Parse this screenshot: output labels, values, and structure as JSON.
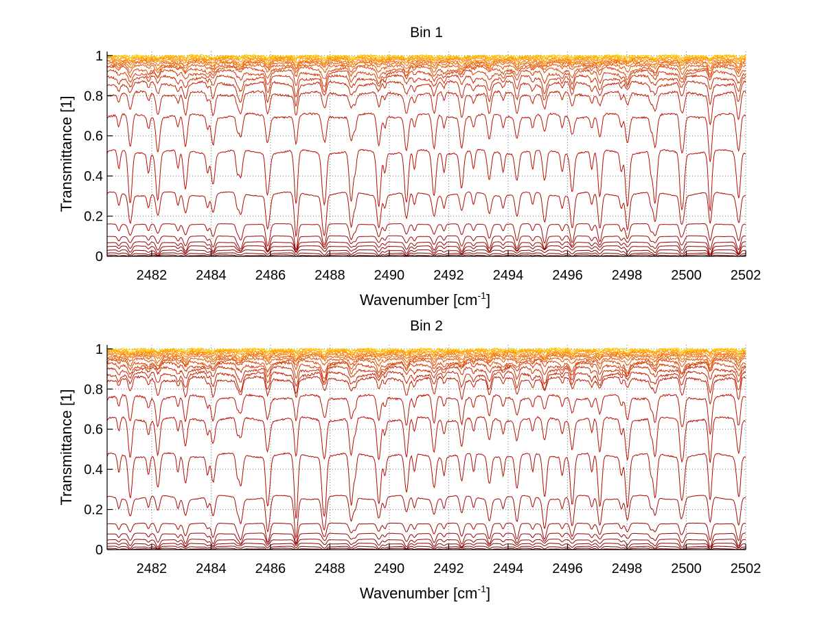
{
  "figure": {
    "background": "#ffffff"
  },
  "chart_data": [
    {
      "type": "line",
      "title": "Bin 1",
      "xlabel": "Wavenumber [cm",
      "xlabel_sup": "-1",
      "xlabel_tail": "]",
      "ylabel": "Transmittance [1]",
      "xlim": [
        2480.5,
        2502
      ],
      "ylim": [
        0,
        1.02
      ],
      "xticks": [
        2482,
        2484,
        2486,
        2488,
        2490,
        2492,
        2494,
        2496,
        2498,
        2500,
        2502
      ],
      "xtick_labels": [
        "2482",
        "2484",
        "2486",
        "2488",
        "2490",
        "2492",
        "2494",
        "2496",
        "2498",
        "2500",
        "2502"
      ],
      "yticks": [
        0,
        0.2,
        0.4,
        0.6,
        0.8,
        1
      ],
      "ytick_labels": [
        "0",
        "0.2",
        "0.4",
        "0.6",
        "0.8",
        "1"
      ],
      "grid": true,
      "line_spacing_cm1": 0.93,
      "series_baselines": [
        0.998,
        0.995,
        0.99,
        0.985,
        0.978,
        0.97,
        0.962,
        0.95,
        0.935,
        0.915,
        0.89,
        0.86,
        0.81,
        0.7,
        0.52,
        0.31,
        0.16,
        0.1,
        0.07,
        0.05,
        0.03,
        0.015,
        0.005
      ],
      "series_colors": [
        "#ffd400",
        "#ffbf00",
        "#ffa800",
        "#ff9600",
        "#ff8400",
        "#f57200",
        "#ee6200",
        "#e65200",
        "#dd4400",
        "#d43600",
        "#cc2a00",
        "#c42000",
        "#bf1800",
        "#bb1000",
        "#b80a00",
        "#b00800",
        "#a80600",
        "#a00400",
        "#980300",
        "#900200",
        "#880100",
        "#800000",
        "#780000"
      ]
    },
    {
      "type": "line",
      "title": "Bin 2",
      "xlabel": "Wavenumber [cm",
      "xlabel_sup": "-1",
      "xlabel_tail": "]",
      "ylabel": "Transmittance [1]",
      "xlim": [
        2480.5,
        2502
      ],
      "ylim": [
        0,
        1.02
      ],
      "xticks": [
        2482,
        2484,
        2486,
        2488,
        2490,
        2492,
        2494,
        2496,
        2498,
        2500,
        2502
      ],
      "xtick_labels": [
        "2482",
        "2484",
        "2486",
        "2488",
        "2490",
        "2492",
        "2494",
        "2496",
        "2498",
        "2500",
        "2502"
      ],
      "yticks": [
        0,
        0.2,
        0.4,
        0.6,
        0.8,
        1
      ],
      "ytick_labels": [
        "0",
        "0.2",
        "0.4",
        "0.6",
        "0.8",
        "1"
      ],
      "grid": true,
      "line_spacing_cm1": 0.93,
      "series_baselines": [
        0.998,
        0.995,
        0.99,
        0.985,
        0.978,
        0.97,
        0.962,
        0.95,
        0.935,
        0.92,
        0.9,
        0.875,
        0.85,
        0.76,
        0.65,
        0.47,
        0.26,
        0.13,
        0.08,
        0.05,
        0.03,
        0.015,
        0.005
      ],
      "series_colors": [
        "#ffd400",
        "#ffbf00",
        "#ffa800",
        "#ff9600",
        "#ff8400",
        "#f57200",
        "#ee6200",
        "#e65200",
        "#dd4400",
        "#d43600",
        "#cc2a00",
        "#c42000",
        "#bf1800",
        "#bb1000",
        "#b80a00",
        "#b00800",
        "#a80600",
        "#a00400",
        "#980300",
        "#900200",
        "#880100",
        "#800000",
        "#780000"
      ]
    }
  ]
}
